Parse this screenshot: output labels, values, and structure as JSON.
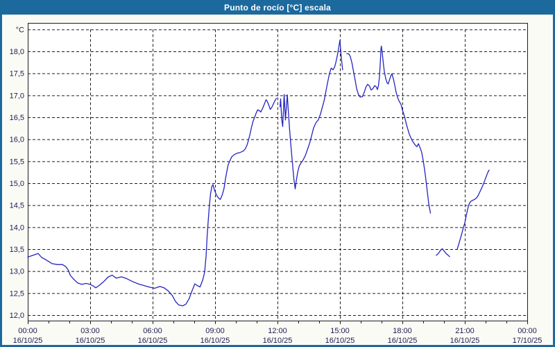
{
  "window": {
    "title": "Punto de rocío [°C] escala"
  },
  "colors": {
    "titlebar": "#1c699e",
    "window_border": "#1c699e",
    "window_bg": "#fbfbf5",
    "plot_bg": "#ffffff",
    "grid": "#1b1b1b",
    "frame": "#1b1b1b",
    "axis_label": "#1a1a55",
    "series_line": "#2323c1"
  },
  "chart_data": {
    "type": "line",
    "title": "Punto de rocío [°C] escala",
    "y_unit_label": "°C",
    "ylim": [
      12.0,
      18.5
    ],
    "xlim_hours": [
      0,
      24
    ],
    "grid": "dashed",
    "legend": "none",
    "x_minor_tick_every_hours": 1,
    "x_major_tick_every_hours": 3,
    "x_ticks": [
      {
        "t": 0,
        "time": "00:00",
        "date": "16/10/25"
      },
      {
        "t": 3,
        "time": "03:00",
        "date": "16/10/25"
      },
      {
        "t": 6,
        "time": "06:00",
        "date": "16/10/25"
      },
      {
        "t": 9,
        "time": "09:00",
        "date": "16/10/25"
      },
      {
        "t": 12,
        "time": "12:00",
        "date": "16/10/25"
      },
      {
        "t": 15,
        "time": "15:00",
        "date": "16/10/25"
      },
      {
        "t": 18,
        "time": "18:00",
        "date": "16/10/25"
      },
      {
        "t": 21,
        "time": "21:00",
        "date": "16/10/25"
      },
      {
        "t": 24,
        "time": "00:00",
        "date": "17/10/25"
      }
    ],
    "y_ticks": [
      {
        "v": 18.0,
        "label": "18,0"
      },
      {
        "v": 17.5,
        "label": "17,5"
      },
      {
        "v": 17.0,
        "label": "17,0"
      },
      {
        "v": 16.5,
        "label": "16,5"
      },
      {
        "v": 16.0,
        "label": "16,0"
      },
      {
        "v": 15.5,
        "label": "15,5"
      },
      {
        "v": 15.0,
        "label": "15,0"
      },
      {
        "v": 14.5,
        "label": "14,5"
      },
      {
        "v": 14.0,
        "label": "14,0"
      },
      {
        "v": 13.5,
        "label": "13,5"
      },
      {
        "v": 13.0,
        "label": "13,0"
      },
      {
        "v": 12.5,
        "label": "12,5"
      },
      {
        "v": 12.0,
        "label": "12,0"
      }
    ],
    "series": [
      {
        "name": "Punto de rocío",
        "color": "#2323c1",
        "segments": [
          [
            [
              0,
              13.32
            ],
            [
              0.25,
              13.36
            ],
            [
              0.5,
              13.4
            ],
            [
              0.67,
              13.31
            ],
            [
              0.83,
              13.27
            ],
            [
              1.0,
              13.22
            ],
            [
              1.17,
              13.17
            ],
            [
              1.42,
              13.15
            ],
            [
              1.67,
              13.15
            ],
            [
              1.83,
              13.1
            ],
            [
              1.95,
              13.02
            ],
            [
              2.05,
              12.9
            ],
            [
              2.2,
              12.82
            ],
            [
              2.4,
              12.73
            ],
            [
              2.6,
              12.7
            ],
            [
              2.8,
              12.72
            ],
            [
              3.0,
              12.7
            ],
            [
              3.15,
              12.66
            ],
            [
              3.27,
              12.62
            ],
            [
              3.45,
              12.68
            ],
            [
              3.67,
              12.77
            ],
            [
              3.85,
              12.86
            ],
            [
              4.05,
              12.91
            ],
            [
              4.25,
              12.84
            ],
            [
              4.5,
              12.87
            ],
            [
              4.75,
              12.83
            ],
            [
              5.0,
              12.77
            ],
            [
              5.3,
              12.71
            ],
            [
              5.6,
              12.67
            ],
            [
              5.9,
              12.63
            ],
            [
              6.1,
              12.61
            ],
            [
              6.35,
              12.65
            ],
            [
              6.55,
              12.62
            ],
            [
              6.75,
              12.55
            ],
            [
              6.95,
              12.44
            ],
            [
              7.1,
              12.31
            ],
            [
              7.25,
              12.23
            ],
            [
              7.45,
              12.21
            ],
            [
              7.6,
              12.25
            ],
            [
              7.75,
              12.37
            ],
            [
              7.9,
              12.56
            ],
            [
              8.03,
              12.71
            ],
            [
              8.15,
              12.67
            ],
            [
              8.28,
              12.64
            ],
            [
              8.42,
              12.82
            ],
            [
              8.5,
              12.98
            ],
            [
              8.57,
              13.35
            ],
            [
              8.62,
              13.8
            ],
            [
              8.68,
              14.2
            ],
            [
              8.73,
              14.5
            ],
            [
              8.78,
              14.75
            ],
            [
              8.85,
              14.93
            ],
            [
              8.9,
              14.97
            ],
            [
              8.98,
              14.83
            ],
            [
              9.08,
              14.72
            ],
            [
              9.17,
              14.66
            ],
            [
              9.25,
              14.63
            ],
            [
              9.35,
              14.74
            ],
            [
              9.43,
              14.88
            ],
            [
              9.5,
              15.1
            ],
            [
              9.57,
              15.28
            ],
            [
              9.63,
              15.42
            ],
            [
              9.72,
              15.52
            ],
            [
              9.8,
              15.6
            ],
            [
              9.92,
              15.65
            ],
            [
              10.05,
              15.68
            ],
            [
              10.2,
              15.7
            ],
            [
              10.35,
              15.73
            ],
            [
              10.45,
              15.78
            ],
            [
              10.53,
              15.86
            ],
            [
              10.6,
              15.97
            ],
            [
              10.68,
              16.12
            ],
            [
              10.75,
              16.27
            ],
            [
              10.82,
              16.4
            ],
            [
              10.9,
              16.5
            ],
            [
              10.98,
              16.6
            ],
            [
              11.05,
              16.67
            ],
            [
              11.13,
              16.65
            ],
            [
              11.2,
              16.62
            ],
            [
              11.3,
              16.72
            ],
            [
              11.4,
              16.84
            ],
            [
              11.45,
              16.9
            ],
            [
              11.5,
              16.87
            ],
            [
              11.58,
              16.78
            ],
            [
              11.65,
              16.68
            ],
            [
              11.72,
              16.72
            ],
            [
              11.8,
              16.8
            ],
            [
              11.88,
              16.88
            ],
            [
              11.95,
              16.93
            ]
          ],
          [
            [
              12.12,
              16.74
            ],
            [
              12.15,
              16.92
            ],
            [
              12.2,
              16.47
            ],
            [
              12.25,
              16.29
            ],
            [
              12.32,
              17.02
            ],
            [
              12.38,
              16.44
            ],
            [
              12.47,
              17.01
            ],
            [
              12.53,
              16.57
            ],
            [
              12.58,
              16.23
            ],
            [
              12.65,
              15.82
            ],
            [
              12.72,
              15.45
            ],
            [
              12.78,
              15.12
            ],
            [
              12.85,
              14.87
            ],
            [
              12.9,
              15.05
            ],
            [
              12.97,
              15.25
            ],
            [
              13.05,
              15.4
            ],
            [
              13.13,
              15.46
            ],
            [
              13.22,
              15.52
            ],
            [
              13.33,
              15.62
            ],
            [
              13.45,
              15.78
            ],
            [
              13.55,
              15.92
            ],
            [
              13.65,
              16.1
            ],
            [
              13.73,
              16.25
            ],
            [
              13.8,
              16.33
            ],
            [
              13.88,
              16.4
            ],
            [
              13.95,
              16.43
            ],
            [
              14.05,
              16.55
            ],
            [
              14.15,
              16.72
            ],
            [
              14.25,
              16.9
            ],
            [
              14.33,
              17.1
            ],
            [
              14.42,
              17.32
            ],
            [
              14.5,
              17.5
            ],
            [
              14.58,
              17.62
            ],
            [
              14.67,
              17.58
            ],
            [
              14.75,
              17.65
            ],
            [
              14.82,
              17.78
            ],
            [
              14.88,
              17.92
            ],
            [
              14.93,
              18.05
            ],
            [
              14.97,
              18.17
            ],
            [
              15.0,
              18.25
            ],
            [
              15.05,
              17.95
            ],
            [
              15.1,
              17.7
            ],
            [
              15.13,
              17.58
            ]
          ],
          [
            [
              15.33,
              17.95
            ],
            [
              15.43,
              17.94
            ],
            [
              15.5,
              17.88
            ],
            [
              15.58,
              17.73
            ],
            [
              15.65,
              17.55
            ],
            [
              15.73,
              17.35
            ],
            [
              15.8,
              17.16
            ],
            [
              15.88,
              17.03
            ],
            [
              15.97,
              16.96
            ],
            [
              16.08,
              16.97
            ],
            [
              16.17,
              17.07
            ],
            [
              16.25,
              17.19
            ],
            [
              16.33,
              17.25
            ],
            [
              16.42,
              17.21
            ],
            [
              16.5,
              17.12
            ],
            [
              16.58,
              17.15
            ],
            [
              16.67,
              17.22
            ],
            [
              16.75,
              17.19
            ],
            [
              16.8,
              17.13
            ],
            [
              16.85,
              17.22
            ],
            [
              16.9,
              17.42
            ],
            [
              16.94,
              17.75
            ],
            [
              16.97,
              18.05
            ],
            [
              16.99,
              18.12
            ],
            [
              17.03,
              17.98
            ],
            [
              17.08,
              17.75
            ],
            [
              17.13,
              17.55
            ],
            [
              17.2,
              17.38
            ],
            [
              17.27,
              17.28
            ],
            [
              17.32,
              17.26
            ],
            [
              17.38,
              17.35
            ],
            [
              17.45,
              17.45
            ],
            [
              17.5,
              17.49
            ],
            [
              17.57,
              17.37
            ],
            [
              17.63,
              17.24
            ],
            [
              17.7,
              17.07
            ],
            [
              17.77,
              16.95
            ],
            [
              17.85,
              16.86
            ],
            [
              17.93,
              16.8
            ],
            [
              18.0,
              16.67
            ],
            [
              18.1,
              16.52
            ],
            [
              18.2,
              16.33
            ],
            [
              18.33,
              16.12
            ],
            [
              18.47,
              15.97
            ],
            [
              18.6,
              15.88
            ],
            [
              18.7,
              15.83
            ],
            [
              18.77,
              15.9
            ],
            [
              18.85,
              15.81
            ],
            [
              18.93,
              15.7
            ],
            [
              19.0,
              15.52
            ],
            [
              19.07,
              15.3
            ],
            [
              19.13,
              15.08
            ],
            [
              19.2,
              14.8
            ],
            [
              19.27,
              14.52
            ],
            [
              19.35,
              14.32
            ]
          ],
          [
            [
              19.63,
              13.36
            ],
            [
              19.73,
              13.4
            ],
            [
              19.83,
              13.47
            ],
            [
              19.92,
              13.51
            ],
            [
              20.0,
              13.46
            ],
            [
              20.1,
              13.4
            ],
            [
              20.2,
              13.36
            ],
            [
              20.27,
              13.33
            ]
          ],
          [
            [
              20.63,
              13.49
            ],
            [
              20.7,
              13.6
            ],
            [
              20.78,
              13.73
            ],
            [
              20.87,
              13.88
            ],
            [
              20.95,
              14.02
            ],
            [
              21.0,
              14.1
            ],
            [
              21.07,
              14.26
            ],
            [
              21.13,
              14.4
            ],
            [
              21.2,
              14.52
            ],
            [
              21.27,
              14.58
            ],
            [
              21.37,
              14.61
            ],
            [
              21.47,
              14.63
            ],
            [
              21.57,
              14.67
            ],
            [
              21.65,
              14.73
            ],
            [
              21.73,
              14.81
            ],
            [
              21.82,
              14.9
            ],
            [
              21.9,
              14.99
            ],
            [
              21.98,
              15.09
            ],
            [
              22.05,
              15.18
            ],
            [
              22.12,
              15.26
            ],
            [
              22.17,
              15.3
            ]
          ]
        ]
      }
    ]
  }
}
